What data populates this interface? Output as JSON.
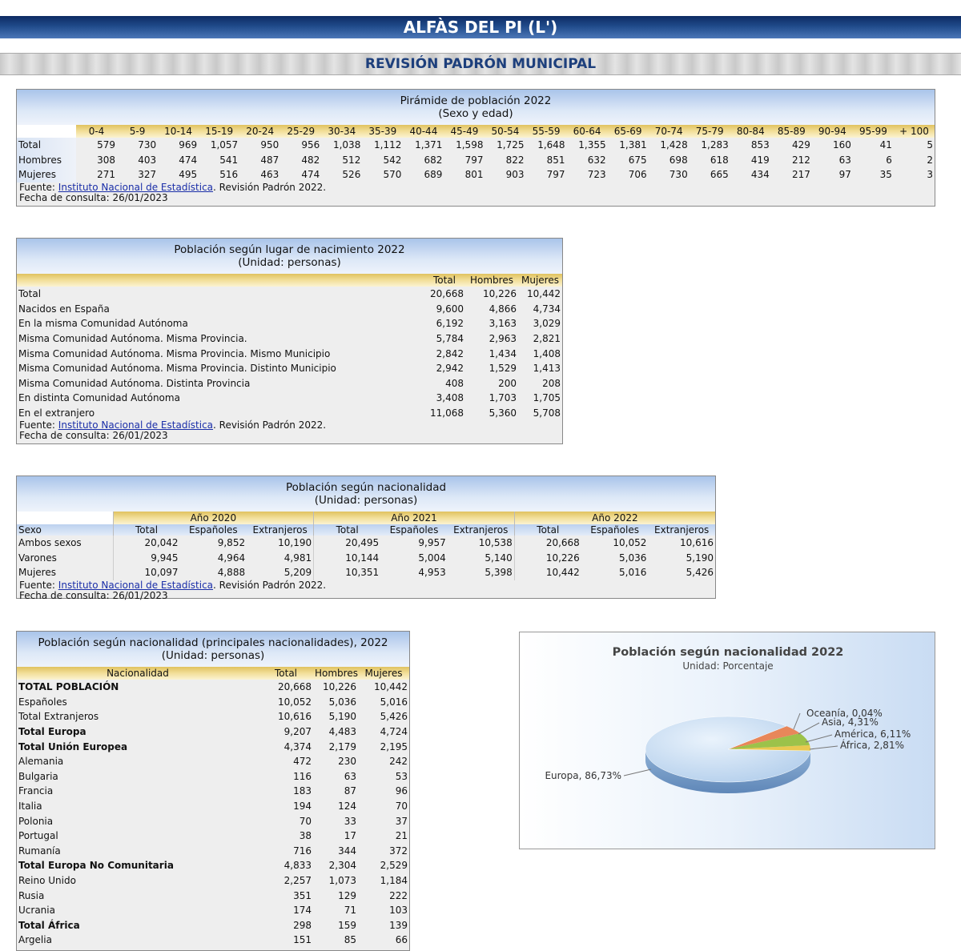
{
  "header": {
    "title": "ALFÀS DEL PI (L')",
    "subtitle": "REVISIÓN PADRÓN MUNICIPAL"
  },
  "source": {
    "prefix": "Fuente: ",
    "link": "Instituto Nacional de Estadística",
    "suffix": ". Revisión Padrón 2022.",
    "date": "Fecha de consulta: 26/01/2023"
  },
  "pyramid": {
    "title": "Pirámide de población 2022",
    "subtitle": "(Sexo y edad)",
    "ages": [
      "0-4",
      "5-9",
      "10-14",
      "15-19",
      "20-24",
      "25-29",
      "30-34",
      "35-39",
      "40-44",
      "45-49",
      "50-54",
      "55-59",
      "60-64",
      "65-69",
      "70-74",
      "75-79",
      "80-84",
      "85-89",
      "90-94",
      "95-99",
      "+ 100"
    ],
    "rows": [
      {
        "label": "Total",
        "values": [
          "579",
          "730",
          "969",
          "1,057",
          "950",
          "956",
          "1,038",
          "1,112",
          "1,371",
          "1,598",
          "1,725",
          "1,648",
          "1,355",
          "1,381",
          "1,428",
          "1,283",
          "853",
          "429",
          "160",
          "41",
          "5"
        ]
      },
      {
        "label": "Hombres",
        "values": [
          "308",
          "403",
          "474",
          "541",
          "487",
          "482",
          "512",
          "542",
          "682",
          "797",
          "822",
          "851",
          "632",
          "675",
          "698",
          "618",
          "419",
          "212",
          "63",
          "6",
          "2"
        ]
      },
      {
        "label": "Mujeres",
        "values": [
          "271",
          "327",
          "495",
          "516",
          "463",
          "474",
          "526",
          "570",
          "689",
          "801",
          "903",
          "797",
          "723",
          "706",
          "730",
          "665",
          "434",
          "217",
          "97",
          "35",
          "3"
        ]
      }
    ]
  },
  "birthplace": {
    "title": "Población según lugar de nacimiento 2022",
    "subtitle": "(Unidad: personas)",
    "columns": [
      "Total",
      "Hombres",
      "Mujeres"
    ],
    "rows": [
      {
        "label": "Total",
        "values": [
          "20,668",
          "10,226",
          "10,442"
        ]
      },
      {
        "label": "Nacidos en España",
        "values": [
          "9,600",
          "4,866",
          "4,734"
        ]
      },
      {
        "label": "En la misma Comunidad Autónoma",
        "values": [
          "6,192",
          "3,163",
          "3,029"
        ]
      },
      {
        "label": "Misma Comunidad Autónoma. Misma Provincia.",
        "values": [
          "5,784",
          "2,963",
          "2,821"
        ]
      },
      {
        "label": "Misma Comunidad Autónoma. Misma Provincia. Mismo Municipio",
        "values": [
          "2,842",
          "1,434",
          "1,408"
        ]
      },
      {
        "label": "Misma Comunidad Autónoma. Misma Provincia. Distinto Municipio",
        "values": [
          "2,942",
          "1,529",
          "1,413"
        ]
      },
      {
        "label": "Misma Comunidad Autónoma. Distinta Provincia",
        "values": [
          "408",
          "200",
          "208"
        ]
      },
      {
        "label": "En distinta Comunidad Autónoma",
        "values": [
          "3,408",
          "1,703",
          "1,705"
        ]
      },
      {
        "label": "En el extranjero",
        "values": [
          "11,068",
          "5,360",
          "5,708"
        ]
      }
    ]
  },
  "nationality": {
    "title": "Población según nacionalidad",
    "subtitle": "(Unidad: personas)",
    "years": [
      "Año 2020",
      "Año 2021",
      "Año 2022"
    ],
    "sub_columns": [
      "Total",
      "Españoles",
      "Extranjeros"
    ],
    "row_header": "Sexo",
    "rows": [
      {
        "label": "Ambos sexos",
        "values": [
          "20,042",
          "9,852",
          "10,190",
          "20,495",
          "9,957",
          "10,538",
          "20,668",
          "10,052",
          "10,616"
        ]
      },
      {
        "label": "Varones",
        "values": [
          "9,945",
          "4,964",
          "4,981",
          "10,144",
          "5,004",
          "5,140",
          "10,226",
          "5,036",
          "5,190"
        ]
      },
      {
        "label": "Mujeres",
        "values": [
          "10,097",
          "4,888",
          "5,209",
          "10,351",
          "4,953",
          "5,398",
          "10,442",
          "5,016",
          "5,426"
        ]
      }
    ]
  },
  "main_nat": {
    "title": "Población según nacionalidad (principales nacionalidades), 2022",
    "subtitle": "(Unidad: personas)",
    "columns": [
      "Nacionalidad",
      "Total",
      "Hombres",
      "Mujeres"
    ],
    "rows": [
      {
        "label": "TOTAL POBLACIÓN",
        "bold": true,
        "values": [
          "20,668",
          "10,226",
          "10,442"
        ]
      },
      {
        "label": "Españoles",
        "values": [
          "10,052",
          "5,036",
          "5,016"
        ]
      },
      {
        "label": "Total Extranjeros",
        "values": [
          "10,616",
          "5,190",
          "5,426"
        ]
      },
      {
        "label": "Total Europa",
        "bold": true,
        "values": [
          "9,207",
          "4,483",
          "4,724"
        ]
      },
      {
        "label": "Total Unión Europea",
        "bold": true,
        "values": [
          "4,374",
          "2,179",
          "2,195"
        ]
      },
      {
        "label": "Alemania",
        "values": [
          "472",
          "230",
          "242"
        ]
      },
      {
        "label": "Bulgaria",
        "values": [
          "116",
          "63",
          "53"
        ]
      },
      {
        "label": "Francia",
        "values": [
          "183",
          "87",
          "96"
        ]
      },
      {
        "label": "Italia",
        "values": [
          "194",
          "124",
          "70"
        ]
      },
      {
        "label": "Polonia",
        "values": [
          "70",
          "33",
          "37"
        ]
      },
      {
        "label": "Portugal",
        "values": [
          "38",
          "17",
          "21"
        ]
      },
      {
        "label": "Rumanía",
        "values": [
          "716",
          "344",
          "372"
        ]
      },
      {
        "label": "Total Europa No Comunitaria",
        "bold": true,
        "values": [
          "4,833",
          "2,304",
          "2,529"
        ]
      },
      {
        "label": "Reino Unido",
        "values": [
          "2,257",
          "1,073",
          "1,184"
        ]
      },
      {
        "label": "Rusia",
        "values": [
          "351",
          "129",
          "222"
        ]
      },
      {
        "label": "Ucrania",
        "values": [
          "174",
          "71",
          "103"
        ]
      },
      {
        "label": "Total África",
        "bold": true,
        "values": [
          "298",
          "159",
          "139"
        ]
      },
      {
        "label": "Argelia",
        "values": [
          "151",
          "85",
          "66"
        ]
      }
    ]
  },
  "chart_data": {
    "type": "pie",
    "title": "Población según nacionalidad 2022",
    "subtitle": "Unidad: Porcentaje",
    "slices": [
      {
        "label": "Europa, 86,73%",
        "value": 86.73,
        "color": "#c2d8ef"
      },
      {
        "label": "África, 2,81%",
        "value": 2.81,
        "color": "#e9c94f"
      },
      {
        "label": "América, 6,11%",
        "value": 6.11,
        "color": "#9cc24a"
      },
      {
        "label": "Asia, 4,31%",
        "value": 4.31,
        "color": "#e8875a"
      },
      {
        "label": "Oceanía, 0,04%",
        "value": 0.04,
        "color": "#7a9bd0"
      }
    ]
  }
}
